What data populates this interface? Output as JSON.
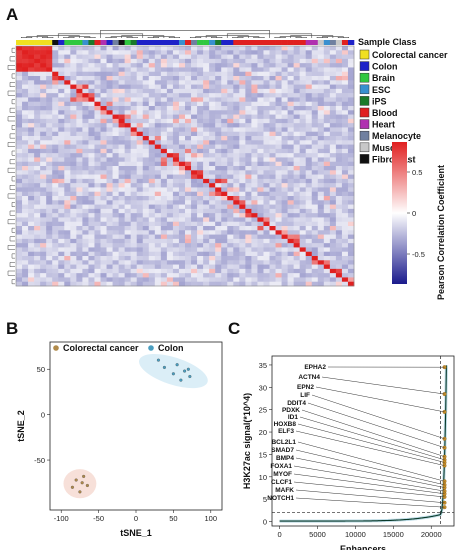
{
  "panels": {
    "a": "A",
    "b": "B",
    "c": "C"
  },
  "panel_a": {
    "legend_title": "Sample Class",
    "classes": [
      {
        "name": "Colorectal cancer",
        "color": "#f0e020"
      },
      {
        "name": "Colon",
        "color": "#1e22c8"
      },
      {
        "name": "Brain",
        "color": "#30c840"
      },
      {
        "name": "ESC",
        "color": "#3890d0"
      },
      {
        "name": "iPS",
        "color": "#1a7a2a"
      },
      {
        "name": "Blood",
        "color": "#e02020"
      },
      {
        "name": "Heart",
        "color": "#b030b0"
      },
      {
        "name": "Melanocyte",
        "color": "#7080a0"
      },
      {
        "name": "Muscle",
        "color": "#c8c8c8"
      },
      {
        "name": "Fibroblast",
        "color": "#111111"
      }
    ],
    "colorbar_label": "Pearson Correlation Coefficient",
    "colorbar_ticks": [
      "0.5",
      "0",
      "-0.5"
    ],
    "colorbar_colors": {
      "high": "#e02020",
      "mid": "#ffffff",
      "low": "#1a1a8c"
    }
  },
  "chart_data": [
    {
      "type": "scatter",
      "xlabel": "tSNE_1",
      "ylabel": "tSNE_2",
      "xticks": [
        "-100",
        "-50",
        "0",
        "50",
        "100"
      ],
      "yticks": [
        "-50",
        "0",
        "50"
      ],
      "xlim": [
        -115,
        115
      ],
      "ylim": [
        -105,
        80
      ],
      "series": [
        {
          "name": "Colorectal cancer",
          "color": "#b08a4a",
          "x": [
            -80,
            -70,
            -65,
            -75,
            -85,
            -72
          ],
          "y": [
            -72,
            -68,
            -78,
            -85,
            -80,
            -75
          ]
        },
        {
          "name": "Colon",
          "color": "#4a9ec0",
          "x": [
            30,
            38,
            55,
            65,
            72,
            60,
            50,
            70
          ],
          "y": [
            60,
            52,
            55,
            48,
            42,
            38,
            45,
            50
          ]
        }
      ]
    },
    {
      "type": "line",
      "xlabel": "Enhancers",
      "ylabel": "H3K27ac signal(*10^4)",
      "xticks": [
        "0",
        "5000",
        "10000",
        "15000",
        "20000"
      ],
      "yticks": [
        "0",
        "5",
        "10",
        "15",
        "20",
        "25",
        "30",
        "35"
      ],
      "xlim": [
        -1000,
        23000
      ],
      "ylim": [
        -1,
        37
      ],
      "threshold_x": 21200,
      "threshold_y": 2,
      "labeled_genes": [
        "EPHA2",
        "ACTN4",
        "EPN2",
        "LIF",
        "DDIT4",
        "PDXK",
        "ID1",
        "HOXB8",
        "ELF3",
        "BCL2L1",
        "SMAD7",
        "BMP4",
        "FOXA1",
        "MYOF",
        "CLCF1",
        "MAFK",
        "NOTCH1"
      ]
    }
  ]
}
